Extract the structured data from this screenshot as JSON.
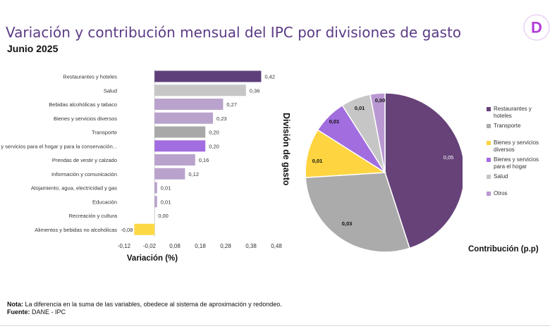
{
  "header": {
    "title": "Variación  y contribución mensual del IPC por divisiones de gasto",
    "subtitle": "Junio 2025"
  },
  "chart_data": [
    {
      "type": "bar",
      "orientation": "horizontal",
      "xlabel": "Variación (%)",
      "ylabel": "División de gasto",
      "categories": [
        "Restaurantes y hoteles",
        "Salud",
        "Bebidas alcohólicas y tabaco",
        "Bienes y servicios diversos",
        "Transporte",
        "Muebles y servicios para el hogar y para la conservación...",
        "Prendas de vestir y calzado",
        "Información y comunicación",
        "Alojamiento, agua, electricidad y gas",
        "Educación",
        "Recreación y cultura",
        "Alimentos y bebidas no alcohólicas"
      ],
      "values": [
        0.42,
        0.36,
        0.27,
        0.23,
        0.2,
        0.2,
        0.16,
        0.12,
        0.01,
        0.01,
        0.0,
        -0.08
      ],
      "value_labels": [
        "0,42",
        "0,36",
        "0,27",
        "0,23",
        "0,20",
        "0,20",
        "0,16",
        "0,12",
        "0,01",
        "0,01",
        "0,00",
        "-0,08"
      ],
      "colors": [
        "#5e3f7a",
        "#c6c6c6",
        "#b9a3cc",
        "#b9a3cc",
        "#a8a8a8",
        "#a26de0",
        "#b9a3cc",
        "#b9a3cc",
        "#b9a3cc",
        "#b9a3cc",
        "#b9a3cc",
        "#fcd844"
      ],
      "xticks": [
        -0.12,
        -0.02,
        0.08,
        0.18,
        0.28,
        0.38,
        0.48
      ],
      "xtick_labels": [
        "-0,12",
        "-0,02",
        "0,08",
        "0,18",
        "0,28",
        "0,38",
        "0,48"
      ],
      "xlim": [
        -0.12,
        0.48
      ],
      "grid": false
    },
    {
      "type": "pie",
      "xlabel": "Contribución (p.p)",
      "categories": [
        "Restaurantes y hoteles",
        "Transporte",
        "Bienes y servicios diversos",
        "Bienes y servicios para el hogar",
        "Salud",
        "Otros"
      ],
      "values": [
        0.05,
        0.03,
        0.01,
        0.01,
        0.01,
        0.0
      ],
      "share_percent": [
        45,
        29,
        10,
        7,
        6,
        3
      ],
      "value_labels": [
        "0,05",
        "0,03",
        "0,01",
        "0,01",
        "0,01",
        "0,00"
      ],
      "colors": [
        "#664279",
        "#ababab",
        "#fed440",
        "#a26ddf",
        "#c6c6c6",
        "#b998d2"
      ],
      "legend_position": "right"
    }
  ],
  "footer": {
    "note_label": "Nota:",
    "note_text": " La diferencia en la suma de las variables, obedece al sistema de aproximación y redondeo.",
    "source_label": "Fuente:",
    "source_text": " DANE - IPC"
  },
  "logo": {
    "letter": "D",
    "accent": "#b23ad9"
  }
}
